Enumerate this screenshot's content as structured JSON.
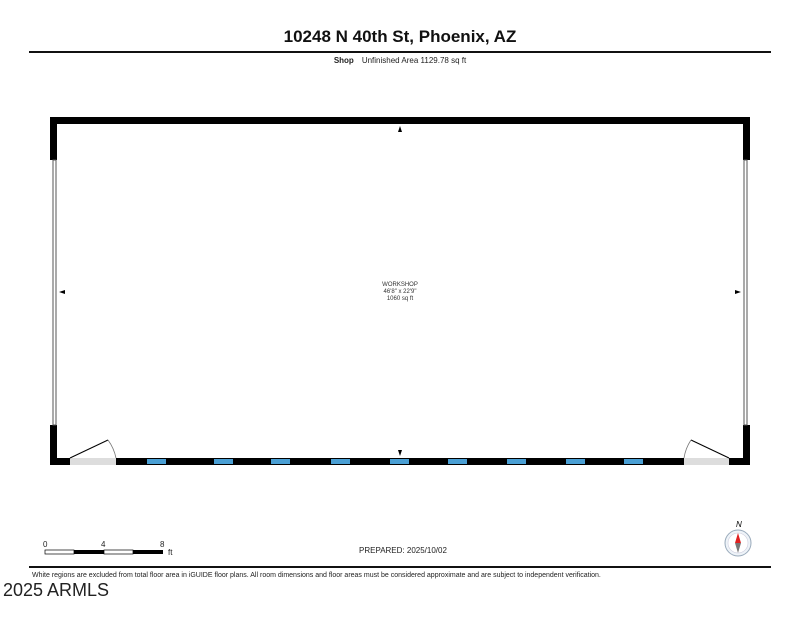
{
  "title": "10248 N 40th St, Phoenix, AZ",
  "subtitle": {
    "floor": "Shop",
    "area": "Unfinished Area 1129.78 sq ft"
  },
  "room": {
    "name": "WORKSHOP",
    "dimensions": "46'8\" x 22'9\"",
    "area": "1060 sq ft"
  },
  "scale": {
    "labels": [
      "0",
      "4",
      "8"
    ],
    "unit": "ft"
  },
  "prepared": "PREPARED: 2025/10/02",
  "compass": {
    "label": "N"
  },
  "disclaimer": "White regions are excluded from total floor area in iGUIDE floor plans. All room dimensions and floor areas must be considered approximate and are subject to independent verification.",
  "watermark": "2025 ARMLS",
  "colors": {
    "wall": "#000000",
    "window": "#4a9fd4",
    "door_swing": "#dddddd",
    "compass_red": "#e02020"
  }
}
